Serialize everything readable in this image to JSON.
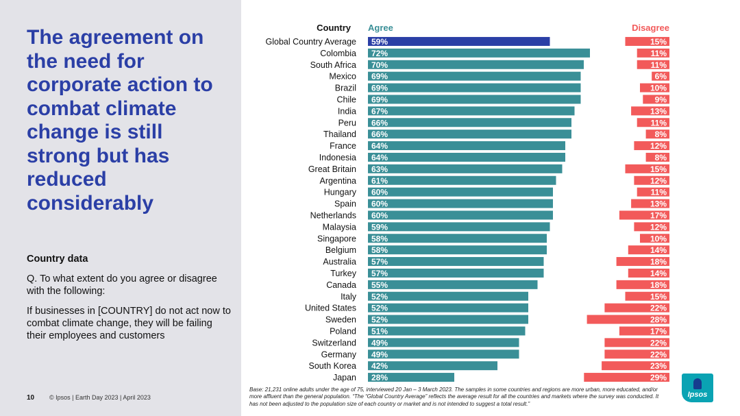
{
  "headline": "The agreement on the need for corporate action to combat climate change is still strong but has reduced considerably",
  "sidebar": {
    "section_label": "Country data",
    "question": "Q. To what extent do you agree or disagree with the following:",
    "statement": "If businesses in [COUNTRY] do not act now to combat climate change, they will be failing their employees and customers"
  },
  "footer": {
    "page_number": "10",
    "info": "© Ipsos | Earth Day 2023 | April 2023",
    "base_note": "Base: 21,231 online adults under the age of 75, interviewed 20 Jan – 3 March 2023. The samples in some countries and regions are more urban, more educated, and/or more affluent than the general population. “The “Global Country Average” reflects the average result for all the countries and markets where the survey was conducted. It has not been adjusted to the population size of each country or market and is not intended to suggest a total result.”"
  },
  "logo": {
    "text": "Ipsos"
  },
  "colors": {
    "agree": "#3a8f97",
    "agree_highlight": "#2b3fa6",
    "disagree": "#f25a5a",
    "headline": "#2b3fa6"
  },
  "chart_data": {
    "type": "bar",
    "orientation": "horizontal",
    "column_headers": {
      "category": "Country",
      "agree": "Agree",
      "disagree": "Disagree"
    },
    "categories": [
      "Global Country Average",
      "Colombia",
      "South Africa",
      "Mexico",
      "Brazil",
      "Chile",
      "India",
      "Peru",
      "Thailand",
      "France",
      "Indonesia",
      "Great Britain",
      "Argentina",
      "Hungary",
      "Spain",
      "Netherlands",
      "Malaysia",
      "Singapore",
      "Belgium",
      "Australia",
      "Turkey",
      "Canada",
      "Italy",
      "United States",
      "Sweden",
      "Poland",
      "Switzerland",
      "Germany",
      "South Korea",
      "Japan"
    ],
    "series": [
      {
        "name": "Agree",
        "values": [
          59,
          72,
          70,
          69,
          69,
          69,
          67,
          66,
          66,
          64,
          64,
          63,
          61,
          60,
          60,
          60,
          59,
          58,
          58,
          57,
          57,
          55,
          52,
          52,
          52,
          51,
          49,
          49,
          42,
          28
        ]
      },
      {
        "name": "Disagree",
        "values": [
          15,
          11,
          11,
          6,
          10,
          9,
          13,
          11,
          8,
          12,
          8,
          15,
          12,
          11,
          13,
          17,
          12,
          10,
          14,
          18,
          14,
          18,
          15,
          22,
          28,
          17,
          22,
          22,
          23,
          29
        ]
      }
    ],
    "value_suffix": "%",
    "agree_xlim": [
      0,
      100
    ],
    "disagree_xlim": [
      0,
      100
    ]
  }
}
